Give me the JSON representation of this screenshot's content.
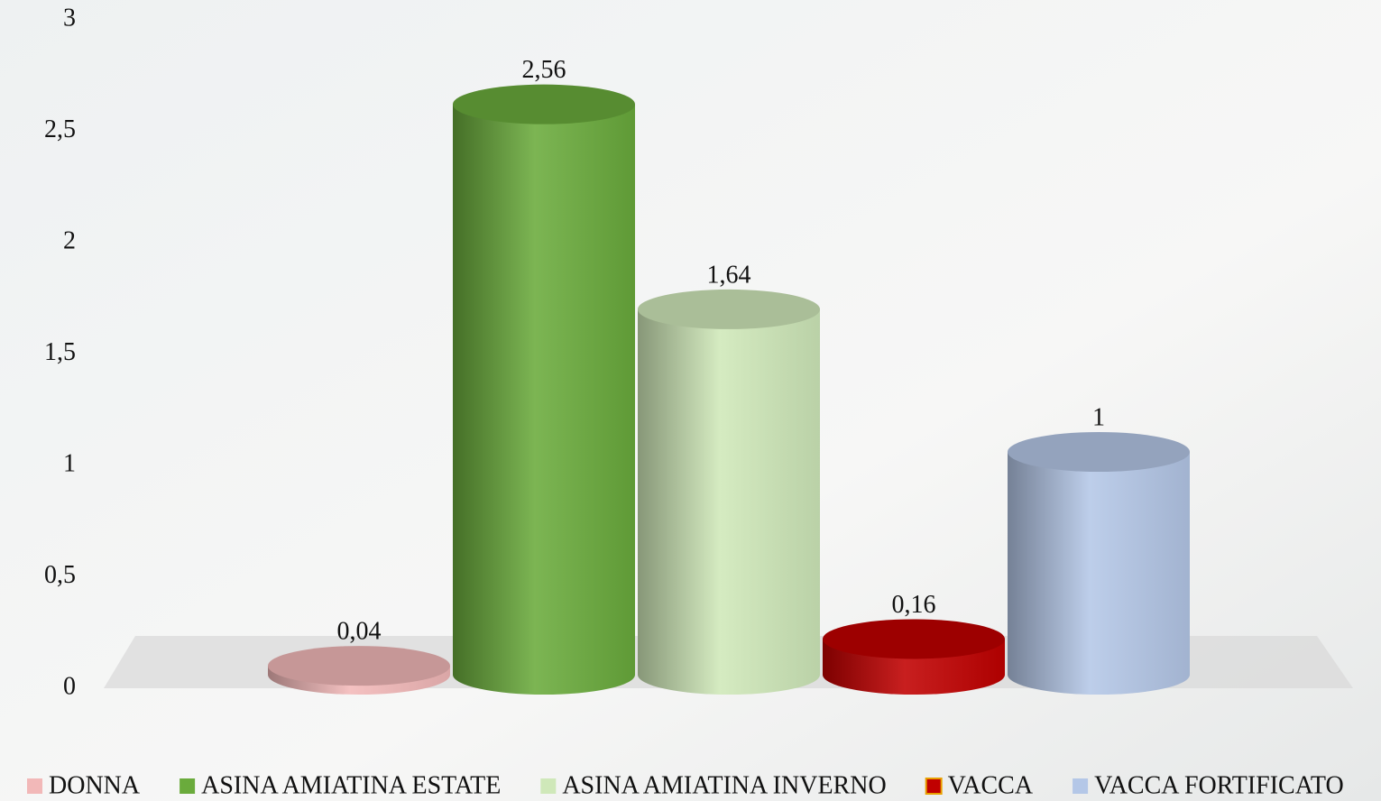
{
  "chart_data": {
    "type": "bar",
    "ylim": [
      0,
      3
    ],
    "yticks": [
      0,
      {
        "value": 0.5,
        "label": "0,5"
      },
      1,
      {
        "value": 1.5,
        "label": "1,5"
      },
      2,
      {
        "value": 2.5,
        "label": "2,5"
      },
      3
    ],
    "series": [
      {
        "name": "DONNA",
        "color": "#f2b8b8",
        "values": [
          0.04
        ],
        "value_labels": [
          "0,04"
        ]
      },
      {
        "name": "ASINA AMIATINA ESTATE",
        "color": "#6aab3c",
        "values": [
          2.56
        ],
        "value_labels": [
          "2,56"
        ]
      },
      {
        "name": "ASINA AMIATINA INVERNO",
        "color": "#cfe8b9",
        "values": [
          1.64
        ],
        "value_labels": [
          "1,64"
        ]
      },
      {
        "name": "VACCA",
        "color": "#c00000",
        "values": [
          0.16
        ],
        "value_labels": [
          "0,16"
        ]
      },
      {
        "name": "VACCA FORTIFICATO",
        "color": "#b4c7e7",
        "values": [
          1
        ],
        "value_labels": [
          "1"
        ]
      }
    ]
  }
}
